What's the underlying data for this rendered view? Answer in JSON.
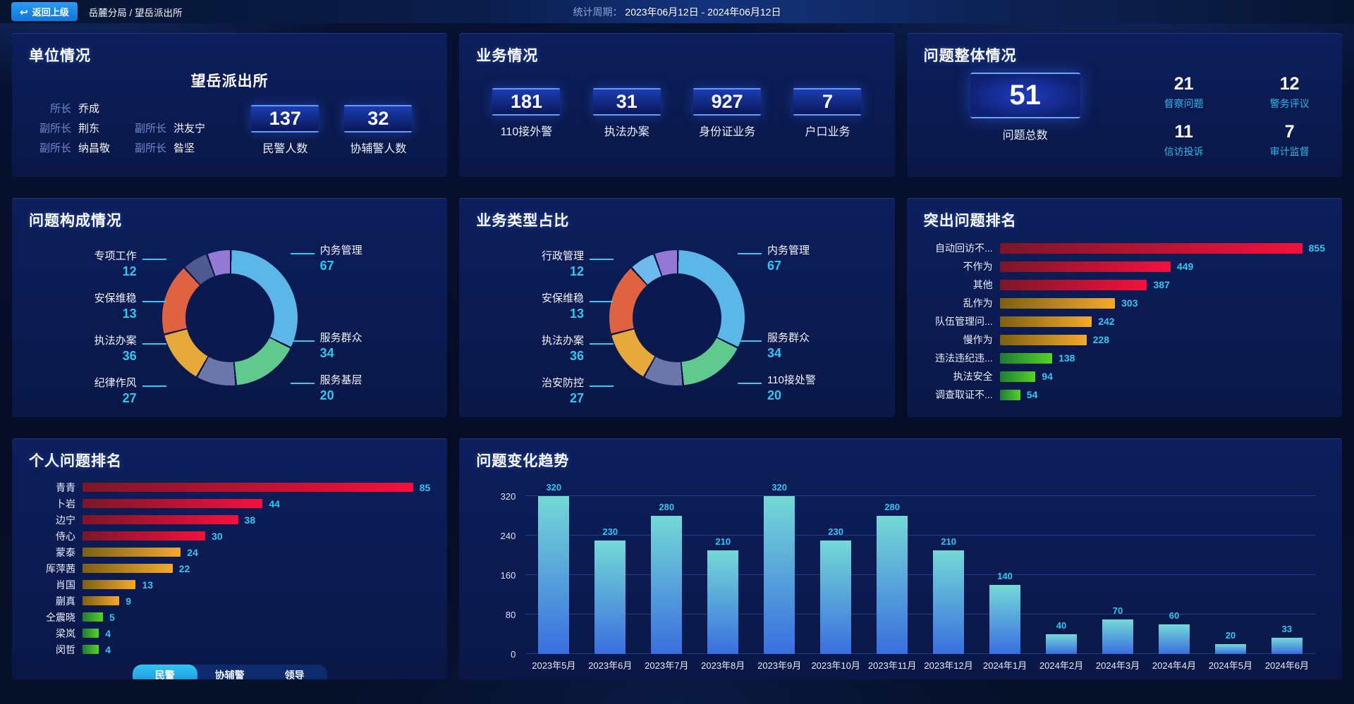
{
  "topbar": {
    "back_label": "返回上级",
    "breadcrumb": "岳麓分局 / 望岳派出所",
    "period_label": "统计周期：",
    "period_value": "2023年06月12日 - 2024年06月12日"
  },
  "theme": {
    "accent_cyan": "#2ec7f2",
    "stat_label_cyan": "#2fb9e8",
    "back_button_blue": "#1f8ef0",
    "panel_bg": "#0b1b52"
  },
  "unit_panel": {
    "title": "单位情况",
    "station_name": "望岳派出所",
    "leaders": [
      {
        "role": "所长",
        "name": "乔成"
      },
      {
        "role": "副所长",
        "name": "荆东"
      },
      {
        "role": "副所长",
        "name": "洪友宁"
      },
      {
        "role": "副所长",
        "name": "纳昌敬"
      },
      {
        "role": "副所长",
        "name": "昝坚"
      }
    ],
    "stats": [
      {
        "value": "137",
        "label": "民警人数"
      },
      {
        "value": "32",
        "label": "协辅警人数"
      }
    ]
  },
  "business_panel": {
    "title": "业务情况",
    "stats": [
      {
        "value": "181",
        "label": "110接外警"
      },
      {
        "value": "31",
        "label": "执法办案"
      },
      {
        "value": "927",
        "label": "身份证业务"
      },
      {
        "value": "7",
        "label": "户口业务"
      }
    ]
  },
  "problem_panel": {
    "title": "问题整体情况",
    "total": {
      "value": "51",
      "label": "问题总数"
    },
    "stats": [
      {
        "value": "21",
        "label": "督察问题"
      },
      {
        "value": "12",
        "label": "警务评议"
      },
      {
        "value": "11",
        "label": "信访投诉"
      },
      {
        "value": "7",
        "label": "审计监督"
      }
    ]
  },
  "chart_data": [
    {
      "id": "problem-composition",
      "type": "pie",
      "title": "问题构成情况",
      "legend_position": "callout-labels",
      "segments": [
        {
          "name": "内务管理",
          "value": 67,
          "color": "#5cb6e8"
        },
        {
          "name": "服务群众",
          "value": 34,
          "color": "#62c98e"
        },
        {
          "name": "服务基层",
          "value": 20,
          "color": "#6b77ab"
        },
        {
          "name": "纪律作风",
          "value": 27,
          "color": "#e8a93c"
        },
        {
          "name": "执法办案",
          "value": 36,
          "color": "#e06341"
        },
        {
          "name": "安保维稳",
          "value": 13,
          "color": "#4d5a90"
        },
        {
          "name": "专项工作",
          "value": 12,
          "color": "#9379d6"
        }
      ]
    },
    {
      "id": "business-type",
      "type": "pie",
      "title": "业务类型占比",
      "legend_position": "callout-labels",
      "segments": [
        {
          "name": "内务管理",
          "value": 67,
          "color": "#5cb6e8"
        },
        {
          "name": "服务群众",
          "value": 34,
          "color": "#62c98e"
        },
        {
          "name": "110接处警",
          "value": 20,
          "color": "#6b77ab"
        },
        {
          "name": "治安防控",
          "value": 27,
          "color": "#e8a93c"
        },
        {
          "name": "执法办案",
          "value": 36,
          "color": "#e06341"
        },
        {
          "name": "安保维稳",
          "value": 13,
          "color": "#6fb9ec"
        },
        {
          "name": "行政管理",
          "value": 12,
          "color": "#9379d6"
        }
      ]
    },
    {
      "id": "top-problems",
      "type": "bar",
      "orientation": "horizontal",
      "title": "突出问题排名",
      "max": 855,
      "xlabel": "",
      "ylabel": "",
      "palettes": {
        "red": [
          "#7c1628",
          "#f5103d"
        ],
        "gold": [
          "#7c6012",
          "#f5a92c"
        ],
        "green": [
          "#1f7c33",
          "#55d326"
        ]
      },
      "rows": [
        {
          "label": "自动回访不...",
          "value": 855,
          "palette": "red"
        },
        {
          "label": "不作为",
          "value": 449,
          "palette": "red"
        },
        {
          "label": "其他",
          "value": 387,
          "palette": "red"
        },
        {
          "label": "乱作为",
          "value": 303,
          "palette": "gold"
        },
        {
          "label": "队伍管理问...",
          "value": 242,
          "palette": "gold"
        },
        {
          "label": "慢作为",
          "value": 228,
          "palette": "gold"
        },
        {
          "label": "违法违纪违...",
          "value": 138,
          "palette": "green"
        },
        {
          "label": "执法安全",
          "value": 94,
          "palette": "green"
        },
        {
          "label": "调查取证不...",
          "value": 54,
          "palette": "green"
        }
      ]
    },
    {
      "id": "personal-ranking",
      "type": "bar",
      "orientation": "horizontal",
      "title": "个人问题排名",
      "max": 85,
      "xlabel": "",
      "ylabel": "",
      "palettes": {
        "red": [
          "#7c1628",
          "#f5103d"
        ],
        "gold": [
          "#7c6012",
          "#f5a92c"
        ],
        "green": [
          "#1f7c33",
          "#55d326"
        ]
      },
      "rows": [
        {
          "label": "青青",
          "value": 85,
          "palette": "red"
        },
        {
          "label": "卜岩",
          "value": 44,
          "palette": "red"
        },
        {
          "label": "边宁",
          "value": 38,
          "palette": "red"
        },
        {
          "label": "侍心",
          "value": 30,
          "palette": "red"
        },
        {
          "label": "蒙泰",
          "value": 24,
          "palette": "gold"
        },
        {
          "label": "厍萍茜",
          "value": 22,
          "palette": "gold"
        },
        {
          "label": "肖国",
          "value": 13,
          "palette": "gold"
        },
        {
          "label": "蒯真",
          "value": 9,
          "palette": "gold"
        },
        {
          "label": "仝震晓",
          "value": 5,
          "palette": "green"
        },
        {
          "label": "梁岚",
          "value": 4,
          "palette": "green"
        },
        {
          "label": "闵哲",
          "value": 4,
          "palette": "green"
        }
      ],
      "tabs": [
        {
          "label": "民警",
          "active": true
        },
        {
          "label": "协辅警",
          "active": false
        },
        {
          "label": "领导",
          "active": false
        }
      ]
    },
    {
      "id": "trend",
      "type": "bar",
      "orientation": "vertical",
      "title": "问题变化趋势",
      "xlabel": "",
      "ylabel": "",
      "ylim": [
        0,
        320
      ],
      "yticks": [
        0,
        80,
        160,
        240,
        320
      ],
      "grid": true,
      "bar_gradient": [
        "#74d9d6",
        "#3a6ee0"
      ],
      "categories": [
        "2023年5月",
        "2023年6月",
        "2023年7月",
        "2023年8月",
        "2023年9月",
        "2023年10月",
        "2023年11月",
        "2023年12月",
        "2024年1月",
        "2024年2月",
        "2024年3月",
        "2024年4月",
        "2024年5月",
        "2024年6月"
      ],
      "values": [
        320,
        230,
        280,
        210,
        320,
        230,
        280,
        210,
        140,
        40,
        70,
        60,
        20,
        33
      ]
    }
  ]
}
